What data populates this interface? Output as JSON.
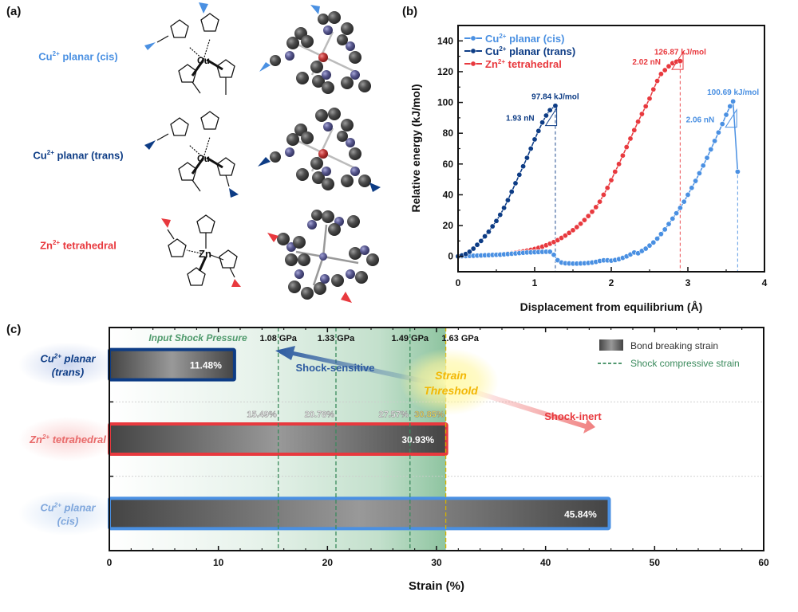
{
  "panels": {
    "a": "(a)",
    "b": "(b)",
    "c": "(c)"
  },
  "colors": {
    "cis": "#4a90e2",
    "trans": "#0d3c85",
    "zn": "#e8393e",
    "green": "#3a8a5c",
    "threshold": "#f2b705"
  },
  "panel_a": {
    "structures": [
      {
        "label_main": "Cu",
        "label_sup": "2+",
        "label_rest": " planar (cis)",
        "metal": "Cu",
        "color_key": "cis"
      },
      {
        "label_main": "Cu",
        "label_sup": "2+",
        "label_rest": " planar (trans)",
        "metal": "Cu",
        "color_key": "trans"
      },
      {
        "label_main": "Zn",
        "label_sup": "2+",
        "label_rest": " tetrahedral",
        "metal": "Zn",
        "color_key": "zn"
      }
    ],
    "atom_labels": {
      "N": "N"
    }
  },
  "chart_data": [
    {
      "type": "line",
      "panel": "b",
      "xlabel": "Displacement from equilibrium (Å)",
      "ylabel": "Relative energy (kJ/mol)",
      "xlim": [
        0,
        4
      ],
      "ylim": [
        -10,
        150
      ],
      "xticks": [
        0,
        1,
        2,
        3,
        4
      ],
      "yticks": [
        0,
        20,
        40,
        60,
        80,
        100,
        120,
        140
      ],
      "legend_position": "top-left",
      "series": [
        {
          "name_main": "Cu",
          "name_sup": "2+",
          "name_rest": " planar (cis)",
          "color_key": "cis",
          "x": [
            0,
            0.05,
            0.1,
            0.15,
            0.2,
            0.25,
            0.3,
            0.35,
            0.4,
            0.45,
            0.5,
            0.55,
            0.6,
            0.65,
            0.7,
            0.75,
            0.8,
            0.85,
            0.9,
            0.95,
            1.0,
            1.05,
            1.1,
            1.15,
            1.2,
            1.25,
            1.3,
            1.35,
            1.4,
            1.45,
            1.5,
            1.55,
            1.6,
            1.65,
            1.7,
            1.75,
            1.8,
            1.85,
            1.9,
            1.95,
            2.0,
            2.05,
            2.1,
            2.15,
            2.2,
            2.25,
            2.3,
            2.35,
            2.4,
            2.45,
            2.5,
            2.55,
            2.6,
            2.65,
            2.7,
            2.75,
            2.8,
            2.85,
            2.9,
            2.95,
            3.0,
            3.05,
            3.1,
            3.15,
            3.2,
            3.25,
            3.3,
            3.35,
            3.4,
            3.45,
            3.5,
            3.55,
            3.59,
            3.65
          ],
          "y": [
            0,
            0.1,
            0.2,
            0.3,
            0.4,
            0.5,
            0.6,
            0.7,
            0.8,
            0.9,
            1.0,
            1.1,
            1.3,
            1.5,
            1.7,
            1.9,
            2.1,
            2.3,
            2.5,
            2.6,
            2.7,
            2.8,
            2.9,
            3.0,
            3.0,
            1.0,
            -2.5,
            -4.0,
            -4.5,
            -4.6,
            -4.7,
            -4.7,
            -4.6,
            -4.5,
            -4.3,
            -4.0,
            -3.6,
            -3.0,
            -2.6,
            -2.6,
            -2.8,
            -2.4,
            -1.8,
            -1.0,
            0.0,
            1.2,
            2.5,
            2.0,
            3.5,
            5.0,
            7.0,
            9.0,
            11.5,
            14.5,
            17.5,
            21.0,
            24.5,
            28.0,
            31.5,
            35.5,
            40.0,
            44.5,
            49.0,
            54.0,
            59.0,
            64.0,
            69.5,
            75.0,
            80.5,
            86.0,
            92.0,
            97.5,
            100.69,
            55.0
          ],
          "peak_label": "100.69 kJ/mol",
          "slope_label": "2.06 nN",
          "rupture_x": 3.65
        },
        {
          "name_main": "Cu",
          "name_sup": "2+",
          "name_rest": " planar (trans)",
          "color_key": "trans",
          "x": [
            0,
            0.05,
            0.1,
            0.15,
            0.2,
            0.25,
            0.3,
            0.35,
            0.4,
            0.45,
            0.5,
            0.55,
            0.6,
            0.65,
            0.7,
            0.75,
            0.8,
            0.85,
            0.9,
            0.95,
            1.0,
            1.05,
            1.1,
            1.15,
            1.2,
            1.27
          ],
          "y": [
            0,
            0.6,
            1.5,
            3.0,
            5.0,
            7.5,
            10.0,
            13.0,
            16.0,
            19.5,
            23.0,
            27.0,
            31.5,
            36.5,
            42.0,
            47.5,
            53.0,
            58.5,
            64.0,
            70.0,
            76.0,
            81.5,
            87.0,
            91.5,
            95.0,
            97.84
          ],
          "peak_label": "97.84 kJ/mol",
          "slope_label": "1.93 nN",
          "rupture_x": 1.27
        },
        {
          "name_main": "Zn",
          "name_sup": "2+",
          "name_rest": " tetrahedral",
          "color_key": "zn",
          "x": [
            0,
            0.05,
            0.1,
            0.15,
            0.2,
            0.25,
            0.3,
            0.35,
            0.4,
            0.45,
            0.5,
            0.55,
            0.6,
            0.65,
            0.7,
            0.75,
            0.8,
            0.85,
            0.9,
            0.95,
            1.0,
            1.05,
            1.1,
            1.15,
            1.2,
            1.25,
            1.3,
            1.35,
            1.4,
            1.45,
            1.5,
            1.55,
            1.6,
            1.65,
            1.7,
            1.75,
            1.8,
            1.85,
            1.9,
            1.95,
            2.0,
            2.05,
            2.1,
            2.15,
            2.2,
            2.25,
            2.3,
            2.35,
            2.4,
            2.45,
            2.5,
            2.55,
            2.6,
            2.65,
            2.7,
            2.75,
            2.8,
            2.85,
            2.9
          ],
          "y": [
            0,
            0,
            0,
            0.1,
            0.2,
            0.3,
            0.4,
            0.5,
            0.6,
            0.8,
            1.0,
            1.2,
            1.5,
            1.8,
            2.1,
            2.4,
            2.8,
            3.2,
            3.7,
            4.2,
            4.8,
            5.5,
            6.3,
            7.2,
            8.2,
            9.3,
            10.5,
            12.0,
            13.5,
            15.2,
            17.0,
            19.0,
            21.2,
            23.6,
            26.2,
            29.0,
            32.0,
            35.5,
            40.0,
            44.5,
            49.5,
            55.0,
            60.0,
            65.5,
            71.0,
            76.5,
            82.0,
            87.5,
            92.5,
            97.5,
            102.5,
            108.5,
            114.0,
            118.5,
            121.0,
            123.5,
            125.5,
            126.5,
            126.87
          ],
          "peak_label": "126.87 kJ/mol",
          "slope_label": "2.02 nN",
          "rupture_x": 2.9
        }
      ]
    },
    {
      "type": "bar",
      "panel": "c",
      "orientation": "horizontal",
      "xlabel": "Strain (%)",
      "xlim": [
        0,
        60
      ],
      "xticks": [
        0,
        10,
        20,
        30,
        40,
        50,
        60
      ],
      "categories": [
        {
          "main": "Cu",
          "sup": "2+",
          "line1": " planar",
          "line2": "(trans)",
          "color_key": "trans"
        },
        {
          "main": "Zn",
          "sup": "2+",
          "line1": " tetrahedral",
          "line2": "",
          "color_key": "zn"
        },
        {
          "main": "Cu",
          "sup": "2+",
          "line1": " planar",
          "line2": "(cis)",
          "color_key": "cis"
        }
      ],
      "values": [
        11.48,
        30.93,
        45.84
      ],
      "value_labels": [
        "11.48%",
        "30.93%",
        "45.84%"
      ],
      "shock_lines": [
        {
          "strain": 15.49,
          "strain_label": "15.49%",
          "pressure_label": "1.08 GPa"
        },
        {
          "strain": 20.78,
          "strain_label": "20.78%",
          "pressure_label": "1.33 GPa"
        },
        {
          "strain": 27.57,
          "strain_label": "27.57%",
          "pressure_label": "1.49 GPa"
        },
        {
          "strain": 30.85,
          "strain_label": "30.85%",
          "pressure_label": "1.63 GPa"
        }
      ],
      "annotations": {
        "input_shock_pressure": "Input Shock Pressure",
        "shock_sensitive": "Shock-sensitive",
        "shock_inert": "Shock-inert",
        "threshold_line1": "Strain",
        "threshold_line2": "Threshold"
      },
      "legend": {
        "bar": "Bond breaking strain",
        "dash": "Shock compressive strain",
        "position": "top-right"
      }
    }
  ]
}
